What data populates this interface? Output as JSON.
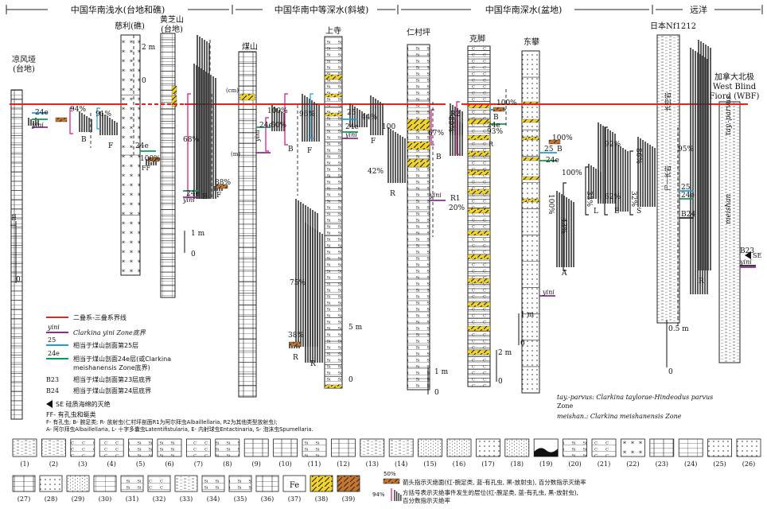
{
  "header": {
    "shallow": "中国华南浅水(台地和礁)",
    "medium": "中国华南中等深水(斜坡)",
    "deep": "中国华南深水(盆地)",
    "ocean": "远洋"
  },
  "sections": [
    {
      "key": "liangfengya",
      "label": "凉风垭\n(台地)"
    },
    {
      "key": "cili",
      "label": "慈利(礁)"
    },
    {
      "key": "huangzhishan",
      "label": "黄芝山\n(台地)"
    },
    {
      "key": "meishan",
      "label": "煤山"
    },
    {
      "key": "shangsi",
      "label": "上寺"
    },
    {
      "key": "rencunping",
      "label": "仁村坪"
    },
    {
      "key": "kejiao",
      "label": "克脚"
    },
    {
      "key": "dongpan",
      "label": "东攀"
    },
    {
      "key": "japan",
      "label": "日本Nf1212"
    },
    {
      "key": "canada",
      "label": "加拿大北极\nWest Blind\nFiord (WBF)"
    }
  ],
  "column_texts": {
    "japan_vertical": "长空岩",
    "japan_vertical2": "尸一长岩",
    "canada_tay": "tay.-parvus",
    "canada_meishan": "meishan"
  },
  "annotations": {
    "p94": "94%",
    "p91": "91%",
    "p100a": "100%",
    "p68": "68%",
    "p88": "88%",
    "p100b": "100%",
    "p50": "50%",
    "p96": "96%",
    "p75": "75%",
    "p38": "38%",
    "p44": "44%",
    "p100c": "100",
    "p42": "42%",
    "p67": "67%",
    "p89": "89%",
    "p20": "20%",
    "p100d": "100%",
    "p93": "93%",
    "p100e": "100%",
    "p100f": "100%",
    "p100g": "100%",
    "p43": "43%",
    "p33": "33%",
    "p62": "62%",
    "p32": "32%",
    "p92": "92%",
    "p86": "86%",
    "p95": "95%",
    "B": "B",
    "F": "F",
    "R": "R",
    "FF": "FF",
    "A": "A",
    "L": "L",
    "E": "E",
    "S": "S",
    "R1": "R1",
    "R2": "R2",
    "e24": "24e",
    "m25": "25",
    "yini": "yini",
    "B23": "B23",
    "B24": "B24",
    "SE": "SE",
    "scale_1m": "1 m",
    "scale_2m": "2 m",
    "scale_5m": "5 m",
    "scale_05m": "0.5 m",
    "zero": "0",
    "cm": "(cm)",
    "m": "(m)"
  },
  "legend": {
    "boundary": "二叠系-三叠系界线",
    "yini_label": "yini",
    "yini_text": "Clarkina yini Zone底界",
    "b25_label": "25",
    "b25_text": "相当于煤山剖面第25层",
    "e24_label": "24e",
    "e24_text": "相当于煤山剖面24e层(或Clarkina",
    "e24_text2": "meishanensis Zone底界)",
    "b23_label": "B23",
    "b23_text": "相当于煤山剖面第23层底界",
    "b24_label": "B24",
    "b24_text": "相当于煤山剖面第24层底界",
    "se_text": "SE 硅质海绵的灭绝",
    "ff_text": "FF- 有孔虫和蜓类",
    "fauna_line1": "F- 有孔虫; B- 腕足类; R- 放射虫(仁村坪剖面R1为阿尔拜虫Albaillellaria, R2为其他类型放射虫);",
    "fauna_line2": "A- 阿尔拜虫Albaillellaria, L- 十字多囊虫Latentifistularia, E- 内射球虫Entactinaria, S- 泡沫虫Spumellaria."
  },
  "zone_note": {
    "line1": "tay.-parvus: Clarkina taylorae-Hindeodus parvus",
    "line2": "Zone",
    "line3": "meishan.: Clarkina meishanensis Zone"
  },
  "key_legend": {
    "arrow_label": "50%",
    "arrow_text": "箭头指示灭绝面(红-腕足类, 蓝-有孔虫, 黑-放射虫), 百分数指示灭绝率",
    "box_label": "94%",
    "box_text": "方括号表示灭绝事件发生的层位(红-腕足类, 蓝-有孔虫, 黑-放射虫),",
    "box_text2": "百分数指示灭绝率"
  },
  "lithology": {
    "row1": [
      "(1)",
      "(2)",
      "(3)",
      "(4)",
      "(5)",
      "(6)",
      "(7)",
      "(8)",
      "(9)",
      "(10)",
      "(11)",
      "(12)",
      "(13)",
      "(14)",
      "(15)",
      "(16)",
      "(17)",
      "(18)",
      "(19)",
      "(20)",
      "(21)",
      "(22)",
      "(23)",
      "(24)",
      "(25)",
      "(26)"
    ],
    "row2": [
      "(27)",
      "(28)",
      "(29)",
      "(30)",
      "(31)",
      "(32)",
      "(33)",
      "(34)",
      "(35)",
      "(36)",
      "(37)",
      "(38)",
      "(39)"
    ],
    "fe": "Fe"
  },
  "colors": {
    "boundary": "#e8231f",
    "brachiopod": "#d6127a",
    "foram": "#1aa0dc",
    "radiolarian": "#222222",
    "yini": "#8b2b8e",
    "e24": "#0e9a55",
    "chert": "#f2d52a",
    "tuff": "#c9752c"
  }
}
